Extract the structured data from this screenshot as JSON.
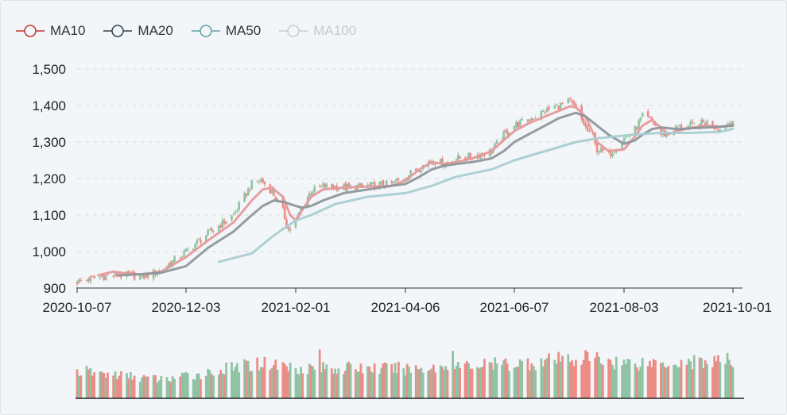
{
  "legend": [
    {
      "name": "MA10",
      "color": "#c23531",
      "active": true
    },
    {
      "name": "MA20",
      "color": "#2f4554",
      "active": true
    },
    {
      "name": "MA50",
      "color": "#61a0a8",
      "active": true
    },
    {
      "name": "MA100",
      "color": "#cccccc",
      "active": false
    }
  ],
  "colors": {
    "up": "#8fc3a3",
    "down": "#ec8c86",
    "ma10": "#e6999b",
    "ma20": "#8e979c",
    "ma50": "#a9cdd1",
    "grid": "#d8dce0"
  },
  "chart_data": {
    "type": "candlestick",
    "x_tick_labels": [
      "2020-10-07",
      "2020-12-03",
      "2021-02-01",
      "2021-04-06",
      "2021-06-07",
      "2021-08-03",
      "2021-10-01"
    ],
    "y_tick_labels": [
      "900",
      "1,000",
      "1,100",
      "1,200",
      "1,300",
      "1,400",
      "1,500"
    ],
    "ylim": [
      900,
      1500
    ],
    "grid": true,
    "legend_position": "top-left",
    "close_path": [
      [
        "2020-10-07",
        918
      ],
      [
        "2020-10-20",
        932
      ],
      [
        "2020-11-02",
        935
      ],
      [
        "2020-11-10",
        930
      ],
      [
        "2020-11-20",
        950
      ],
      [
        "2020-12-03",
        1000
      ],
      [
        "2020-12-15",
        1050
      ],
      [
        "2020-12-29",
        1100
      ],
      [
        "2021-01-08",
        1185
      ],
      [
        "2021-01-13",
        1195
      ],
      [
        "2021-01-19",
        1165
      ],
      [
        "2021-01-25",
        1110
      ],
      [
        "2021-01-28",
        1060
      ],
      [
        "2021-02-01",
        1080
      ],
      [
        "2021-02-05",
        1130
      ],
      [
        "2021-02-10",
        1165
      ],
      [
        "2021-02-17",
        1180
      ],
      [
        "2021-03-01",
        1175
      ],
      [
        "2021-03-15",
        1180
      ],
      [
        "2021-03-29",
        1185
      ],
      [
        "2021-04-06",
        1205
      ],
      [
        "2021-04-14",
        1230
      ],
      [
        "2021-04-21",
        1250
      ],
      [
        "2021-04-28",
        1240
      ],
      [
        "2021-05-05",
        1255
      ],
      [
        "2021-05-14",
        1260
      ],
      [
        "2021-05-25",
        1275
      ],
      [
        "2021-06-01",
        1320
      ],
      [
        "2021-06-07",
        1345
      ],
      [
        "2021-06-14",
        1360
      ],
      [
        "2021-06-23",
        1385
      ],
      [
        "2021-06-30",
        1400
      ],
      [
        "2021-07-06",
        1410
      ],
      [
        "2021-07-09",
        1390
      ],
      [
        "2021-07-14",
        1340
      ],
      [
        "2021-07-20",
        1280
      ],
      [
        "2021-07-26",
        1265
      ],
      [
        "2021-08-03",
        1310
      ],
      [
        "2021-08-09",
        1335
      ],
      [
        "2021-08-13",
        1370
      ],
      [
        "2021-08-18",
        1360
      ],
      [
        "2021-08-23",
        1320
      ],
      [
        "2021-08-27",
        1325
      ],
      [
        "2021-09-01",
        1340
      ],
      [
        "2021-09-09",
        1345
      ],
      [
        "2021-09-17",
        1355
      ],
      [
        "2021-09-24",
        1335
      ],
      [
        "2021-10-01",
        1360
      ]
    ],
    "series": [
      {
        "name": "MA10",
        "points": [
          [
            "2020-10-18",
            935
          ],
          [
            "2020-10-26",
            945
          ],
          [
            "2020-11-02",
            940
          ],
          [
            "2020-11-10",
            937
          ],
          [
            "2020-11-20",
            945
          ],
          [
            "2020-12-03",
            985
          ],
          [
            "2020-12-15",
            1030
          ],
          [
            "2020-12-29",
            1080
          ],
          [
            "2021-01-08",
            1140
          ],
          [
            "2021-01-14",
            1170
          ],
          [
            "2021-01-19",
            1175
          ],
          [
            "2021-01-25",
            1150
          ],
          [
            "2021-01-29",
            1100
          ],
          [
            "2021-02-01",
            1085
          ],
          [
            "2021-02-05",
            1115
          ],
          [
            "2021-02-10",
            1150
          ],
          [
            "2021-02-17",
            1170
          ],
          [
            "2021-03-01",
            1175
          ],
          [
            "2021-03-15",
            1178
          ],
          [
            "2021-03-29",
            1180
          ],
          [
            "2021-04-06",
            1195
          ],
          [
            "2021-04-14",
            1225
          ],
          [
            "2021-04-21",
            1245
          ],
          [
            "2021-04-28",
            1240
          ],
          [
            "2021-05-05",
            1245
          ],
          [
            "2021-05-14",
            1255
          ],
          [
            "2021-05-25",
            1275
          ],
          [
            "2021-06-01",
            1305
          ],
          [
            "2021-06-07",
            1330
          ],
          [
            "2021-06-14",
            1350
          ],
          [
            "2021-06-23",
            1370
          ],
          [
            "2021-06-30",
            1385
          ],
          [
            "2021-07-06",
            1398
          ],
          [
            "2021-07-09",
            1395
          ],
          [
            "2021-07-14",
            1370
          ],
          [
            "2021-07-20",
            1300
          ],
          [
            "2021-07-26",
            1275
          ],
          [
            "2021-08-03",
            1280
          ],
          [
            "2021-08-09",
            1315
          ],
          [
            "2021-08-13",
            1345
          ],
          [
            "2021-08-18",
            1360
          ],
          [
            "2021-08-23",
            1340
          ],
          [
            "2021-08-27",
            1322
          ],
          [
            "2021-09-01",
            1330
          ],
          [
            "2021-09-09",
            1340
          ],
          [
            "2021-09-17",
            1345
          ],
          [
            "2021-09-24",
            1342
          ],
          [
            "2021-10-01",
            1345
          ]
        ]
      },
      {
        "name": "MA20",
        "points": [
          [
            "2020-10-29",
            935
          ],
          [
            "2020-11-10",
            938
          ],
          [
            "2020-11-20",
            942
          ],
          [
            "2020-12-03",
            960
          ],
          [
            "2020-12-15",
            1010
          ],
          [
            "2020-12-29",
            1055
          ],
          [
            "2021-01-08",
            1100
          ],
          [
            "2021-01-14",
            1125
          ],
          [
            "2021-01-20",
            1140
          ],
          [
            "2021-01-26",
            1135
          ],
          [
            "2021-02-01",
            1125
          ],
          [
            "2021-02-05",
            1120
          ],
          [
            "2021-02-10",
            1125
          ],
          [
            "2021-02-17",
            1140
          ],
          [
            "2021-03-01",
            1160
          ],
          [
            "2021-03-15",
            1170
          ],
          [
            "2021-03-29",
            1180
          ],
          [
            "2021-04-06",
            1185
          ],
          [
            "2021-04-14",
            1205
          ],
          [
            "2021-04-21",
            1225
          ],
          [
            "2021-04-28",
            1235
          ],
          [
            "2021-05-05",
            1240
          ],
          [
            "2021-05-14",
            1245
          ],
          [
            "2021-05-25",
            1255
          ],
          [
            "2021-06-01",
            1275
          ],
          [
            "2021-06-07",
            1300
          ],
          [
            "2021-06-14",
            1320
          ],
          [
            "2021-06-23",
            1345
          ],
          [
            "2021-06-30",
            1365
          ],
          [
            "2021-07-09",
            1380
          ],
          [
            "2021-07-14",
            1370
          ],
          [
            "2021-07-20",
            1345
          ],
          [
            "2021-07-26",
            1320
          ],
          [
            "2021-08-03",
            1295
          ],
          [
            "2021-08-09",
            1305
          ],
          [
            "2021-08-13",
            1320
          ],
          [
            "2021-08-18",
            1335
          ],
          [
            "2021-08-23",
            1340
          ],
          [
            "2021-08-27",
            1338
          ],
          [
            "2021-09-01",
            1335
          ],
          [
            "2021-09-09",
            1338
          ],
          [
            "2021-09-17",
            1340
          ],
          [
            "2021-09-24",
            1342
          ],
          [
            "2021-10-01",
            1345
          ]
        ]
      },
      {
        "name": "MA50",
        "points": [
          [
            "2020-12-21",
            972
          ],
          [
            "2021-01-08",
            995
          ],
          [
            "2021-01-19",
            1040
          ],
          [
            "2021-01-26",
            1065
          ],
          [
            "2021-02-01",
            1085
          ],
          [
            "2021-02-10",
            1100
          ],
          [
            "2021-02-24",
            1130
          ],
          [
            "2021-03-15",
            1150
          ],
          [
            "2021-04-06",
            1160
          ],
          [
            "2021-04-21",
            1180
          ],
          [
            "2021-05-05",
            1205
          ],
          [
            "2021-05-25",
            1225
          ],
          [
            "2021-06-07",
            1250
          ],
          [
            "2021-06-23",
            1275
          ],
          [
            "2021-07-09",
            1300
          ],
          [
            "2021-07-20",
            1310
          ],
          [
            "2021-08-03",
            1318
          ],
          [
            "2021-08-13",
            1322
          ],
          [
            "2021-08-23",
            1325
          ],
          [
            "2021-09-09",
            1325
          ],
          [
            "2021-09-24",
            1328
          ],
          [
            "2021-10-01",
            1336
          ]
        ]
      }
    ],
    "volume_shape": [
      [
        "2020-10-07",
        0.55
      ],
      [
        "2020-11-20",
        0.38
      ],
      [
        "2020-12-15",
        0.52
      ],
      [
        "2021-01-13",
        0.72
      ],
      [
        "2021-02-01",
        0.62
      ],
      [
        "2021-04-06",
        0.6
      ],
      [
        "2021-06-07",
        0.7
      ],
      [
        "2021-07-14",
        0.82
      ],
      [
        "2021-08-03",
        0.72
      ],
      [
        "2021-10-01",
        0.75
      ]
    ]
  }
}
